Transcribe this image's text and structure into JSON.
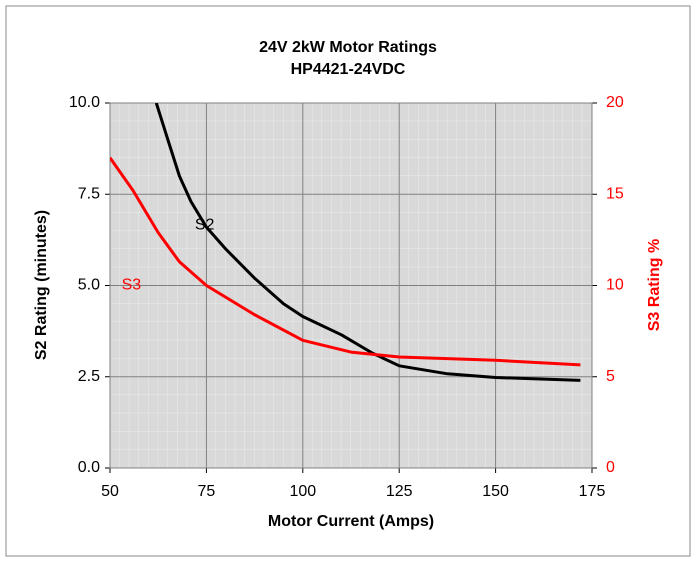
{
  "chart_data": {
    "type": "line",
    "title": "24V 2kW Motor Ratings",
    "subtitle": "HP4421-24VDC",
    "xlabel": "Motor Current (Amps)",
    "ylabel": "S2 Rating (minutes)",
    "y2label": "S3 Rating %",
    "xlim": [
      50,
      175
    ],
    "xticks": [
      50,
      75,
      100,
      125,
      150,
      175
    ],
    "ylim": [
      0,
      10
    ],
    "yticks": [
      {
        "value": 0,
        "label": "0.0"
      },
      2.5,
      {
        "value": 5,
        "label": "5.0"
      },
      7.5,
      {
        "value": 10,
        "label": "10.0"
      }
    ],
    "y2lim": [
      0,
      20
    ],
    "y2ticks": [
      0,
      5,
      10,
      15,
      20
    ],
    "grid": true,
    "series": [
      {
        "name": "S2",
        "color": "#000000",
        "x": [
          62,
          65,
          68,
          71,
          75,
          80,
          87.5,
          95,
          100,
          110,
          118,
          125,
          137.5,
          150,
          172
        ],
        "values": [
          10,
          9.0,
          8.0,
          7.3,
          6.6,
          6.0,
          5.2,
          4.5,
          4.15,
          3.65,
          3.15,
          2.8,
          2.58,
          2.48,
          2.4
        ]
      },
      {
        "name": "S3",
        "color": "#ff0000",
        "axis": "y2",
        "x": [
          50,
          56,
          62.5,
          68,
          75,
          87.5,
          100,
          112.5,
          125,
          150,
          172
        ],
        "values": [
          17.0,
          15.2,
          12.9,
          11.3,
          10.0,
          8.4,
          7.0,
          6.35,
          6.08,
          5.9,
          5.65
        ]
      }
    ]
  }
}
